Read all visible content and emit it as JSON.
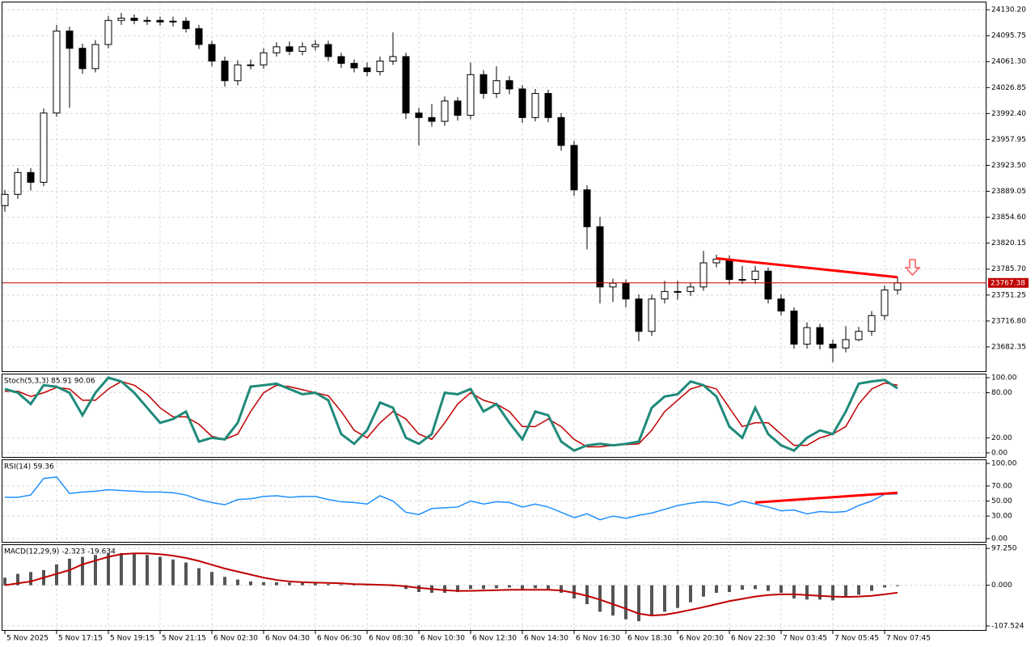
{
  "chart_data": [
    {
      "type": "candlestick",
      "categories": [
        "5 Nov 2025",
        null,
        null,
        null,
        "5 Nov 17:15",
        null,
        null,
        null,
        "5 Nov 19:15",
        null,
        null,
        null,
        "5 Nov 21:15",
        null,
        null,
        null,
        "6 Nov 02:30",
        null,
        null,
        null,
        "6 Nov 04:30",
        null,
        null,
        null,
        "6 Nov 06:30",
        null,
        null,
        null,
        "6 Nov 08:30",
        null,
        null,
        null,
        "6 Nov 10:30",
        null,
        null,
        null,
        "6 Nov 12:30",
        null,
        null,
        null,
        "6 Nov 14:30",
        null,
        null,
        null,
        "6 Nov 16:30",
        null,
        null,
        null,
        "6 Nov 18:30",
        null,
        null,
        null,
        "6 Nov 20:30",
        null,
        null,
        null,
        "6 Nov 22:30",
        null,
        null,
        null,
        "7 Nov 03:45",
        null,
        null,
        null,
        "7 Nov 05:45",
        null,
        null,
        null,
        "7 Nov 07:45",
        null
      ],
      "open": [
        23870,
        23885,
        23914,
        23901,
        23993,
        24102,
        24079,
        24052,
        24084,
        24116,
        24119,
        24116,
        24116,
        24114,
        24115,
        24105,
        24084,
        24062,
        24036,
        24057,
        24057,
        24073,
        24081,
        24075,
        24081,
        24084,
        24068,
        24059,
        24053,
        24048,
        24062,
        24068,
        23993,
        23987,
        23982,
        24009,
        23990,
        24044,
        24019,
        24036,
        24025,
        23987,
        24019,
        23987,
        23950,
        23891,
        23842,
        23762,
        23767,
        23746,
        23703,
        23746,
        23756,
        23756,
        23762,
        23794,
        23799,
        23772,
        23772,
        23783,
        23746,
        23730,
        23686,
        23708,
        23686,
        23681,
        23692,
        23703,
        23724,
        23758
      ],
      "high": [
        23891,
        23920,
        23920,
        23999,
        24110,
        24108,
        24085,
        24090,
        24122,
        24126,
        24124,
        24121,
        24121,
        24121,
        24120,
        24110,
        24089,
        24068,
        24063,
        24064,
        24079,
        24087,
        24088,
        24087,
        24090,
        24089,
        24073,
        24064,
        24060,
        24068,
        24100,
        24073,
        24000,
        24005,
        24015,
        24014,
        24060,
        24050,
        24055,
        24042,
        24030,
        24025,
        24024,
        23993,
        23956,
        23897,
        23855,
        23773,
        23772,
        23752,
        23752,
        23770,
        23770,
        23768,
        23810,
        23805,
        23804,
        23790,
        23790,
        23788,
        23752,
        23735,
        23715,
        23713,
        23692,
        23710,
        23709,
        23730,
        23764,
        23775
      ],
      "low": [
        23862,
        23879,
        23890,
        23896,
        23988,
        24000,
        24045,
        24047,
        24079,
        24110,
        24111,
        24110,
        24109,
        24108,
        24100,
        24078,
        24055,
        24028,
        24030,
        24051,
        24052,
        24068,
        24070,
        24070,
        24076,
        24062,
        24053,
        24047,
        24042,
        24043,
        24057,
        23985,
        23950,
        23975,
        23976,
        23983,
        23985,
        24012,
        24013,
        24018,
        23980,
        23982,
        23981,
        23943,
        23883,
        23812,
        23740,
        23742,
        23735,
        23690,
        23697,
        23740,
        23745,
        23750,
        23757,
        23788,
        23765,
        23766,
        23766,
        23740,
        23724,
        23680,
        23680,
        23679,
        23662,
        23675,
        23690,
        23697,
        23718,
        23752
      ],
      "close": [
        23885,
        23914,
        23901,
        23993,
        24102,
        24079,
        24052,
        24084,
        24116,
        24119,
        24116,
        24116,
        24114,
        24115,
        24105,
        24084,
        24062,
        24036,
        24057,
        24057,
        24073,
        24081,
        24075,
        24081,
        24084,
        24068,
        24059,
        24053,
        24048,
        24062,
        24068,
        23993,
        23987,
        23982,
        24009,
        23990,
        24044,
        24019,
        24036,
        24025,
        23987,
        24019,
        23987,
        23950,
        23891,
        23842,
        23762,
        23767,
        23746,
        23703,
        23746,
        23756,
        23756,
        23762,
        23794,
        23799,
        23772,
        23772,
        23783,
        23746,
        23730,
        23686,
        23708,
        23686,
        23681,
        23692,
        23703,
        23724,
        23758,
        23767.38
      ],
      "ylim": [
        23649,
        24141
      ],
      "yticks": [
        {
          "value": 24130.2,
          "label": "24130.20"
        },
        {
          "value": 24095.75,
          "label": "24095.75"
        },
        {
          "value": 24061.3,
          "label": "24061.30"
        },
        {
          "value": 24026.85,
          "label": "24026.85"
        },
        {
          "value": 23992.4,
          "label": "23992.40"
        },
        {
          "value": 23957.95,
          "label": "23957.95"
        },
        {
          "value": 23923.5,
          "label": "23923.50"
        },
        {
          "value": 23889.05,
          "label": "23889.05"
        },
        {
          "value": 23854.6,
          "label": "23854.60"
        },
        {
          "value": 23820.15,
          "label": "23820.15"
        },
        {
          "value": 23785.7,
          "label": "23785.70"
        },
        {
          "value": 23751.25,
          "label": "23751.25"
        },
        {
          "value": 23716.8,
          "label": "23716.80"
        },
        {
          "value": 23682.35,
          "label": "23682.35"
        }
      ],
      "current_price": {
        "value": 23767.38,
        "label": "23767.38"
      },
      "trendline": {
        "x": [
          55,
          69
        ],
        "y": [
          23800,
          23775
        ],
        "color": "#ff0000"
      },
      "grid": true
    },
    {
      "type": "line",
      "title": "Stoch(5,3,3) 85.91 90.06",
      "values": [
        85,
        80,
        65,
        90,
        88,
        80,
        50,
        80,
        100,
        95,
        80,
        60,
        40,
        45,
        55,
        15,
        20,
        18,
        40,
        88,
        90,
        92,
        85,
        78,
        80,
        70,
        25,
        12,
        30,
        67,
        60,
        20,
        12,
        25,
        80,
        78,
        85,
        55,
        65,
        40,
        18,
        55,
        50,
        15,
        3,
        10,
        12,
        10,
        12,
        15,
        60,
        75,
        78,
        95,
        90,
        75,
        35,
        20,
        60,
        25,
        10,
        3,
        20,
        30,
        25,
        55,
        92,
        95,
        97,
        85.91
      ],
      "color": "#1f8a7a",
      "signal": [
        82,
        82,
        75,
        80,
        87,
        85,
        70,
        70,
        85,
        95,
        90,
        78,
        60,
        48,
        48,
        38,
        22,
        18,
        25,
        55,
        80,
        90,
        88,
        84,
        80,
        76,
        55,
        30,
        20,
        40,
        55,
        45,
        25,
        18,
        40,
        65,
        80,
        70,
        65,
        55,
        35,
        35,
        45,
        35,
        18,
        8,
        8,
        10,
        11,
        12,
        30,
        55,
        70,
        85,
        90,
        85,
        60,
        35,
        40,
        40,
        25,
        10,
        10,
        20,
        25,
        35,
        65,
        85,
        93,
        90.06
      ],
      "signal_color": "#c00000",
      "ylim": [
        -6.5,
        105.4
      ],
      "yticks": [
        {
          "value": 100,
          "label": "100.00"
        },
        {
          "value": 80,
          "label": "80.00"
        },
        {
          "value": 20,
          "label": "20.00"
        },
        {
          "value": 0,
          "label": "0.00"
        }
      ],
      "grid": true
    },
    {
      "type": "line",
      "title": "RSI(14) 59.36",
      "values": [
        55,
        55,
        58,
        80,
        82,
        60,
        62,
        63,
        65,
        64,
        63,
        62,
        62,
        61,
        58,
        52,
        48,
        45,
        52,
        53,
        56,
        57,
        55,
        56,
        56,
        52,
        49,
        48,
        46,
        57,
        50,
        35,
        32,
        40,
        41,
        42,
        50,
        46,
        49,
        48,
        42,
        46,
        42,
        35,
        28,
        33,
        25,
        30,
        27,
        31,
        34,
        39,
        44,
        47,
        49,
        48,
        44,
        50,
        46,
        42,
        37,
        38,
        33,
        36,
        35,
        36,
        44,
        50,
        59,
        59.36
      ],
      "color": "#1e90ff",
      "ylim": [
        -5.4,
        105.4
      ],
      "yticks": [
        {
          "value": 100,
          "label": "100.00"
        },
        {
          "value": 70,
          "label": "70.00"
        },
        {
          "value": 50,
          "label": "50.00"
        },
        {
          "value": 30,
          "label": "30.00"
        },
        {
          "value": 0,
          "label": "0.00"
        }
      ],
      "trendline": {
        "x": [
          58,
          69
        ],
        "y": [
          48,
          61
        ],
        "color": "#ff0000"
      },
      "grid": true
    },
    {
      "type": "macd",
      "title": "MACD(12,29,9) -2.323 -19.634",
      "values": [
        20,
        30,
        35,
        40,
        55,
        70,
        75,
        80,
        85,
        85,
        82,
        80,
        75,
        68,
        60,
        45,
        35,
        22,
        15,
        10,
        8,
        8,
        7,
        6,
        5,
        3,
        2,
        0,
        -1,
        2,
        -3,
        -10,
        -18,
        -20,
        -20,
        -18,
        -10,
        -10,
        -8,
        -6,
        -10,
        -8,
        -10,
        -20,
        -35,
        -50,
        -70,
        -80,
        -90,
        -95,
        -80,
        -70,
        -60,
        -45,
        -30,
        -20,
        -18,
        -12,
        -10,
        -15,
        -20,
        -35,
        -38,
        -38,
        -40,
        -30,
        -25,
        -15,
        -6,
        -2.323
      ],
      "color": "#555555",
      "signal": [
        0,
        5,
        10,
        20,
        30,
        40,
        55,
        65,
        75,
        82,
        84,
        84,
        82,
        78,
        72,
        64,
        54,
        44,
        36,
        28,
        20,
        14,
        10,
        8,
        7,
        6,
        5,
        3,
        2,
        1,
        0,
        -3,
        -7,
        -10,
        -13,
        -15,
        -15,
        -14,
        -13,
        -12,
        -12,
        -12,
        -12,
        -14,
        -20,
        -28,
        -38,
        -50,
        -62,
        -75,
        -80,
        -78,
        -72,
        -65,
        -58,
        -50,
        -42,
        -36,
        -30,
        -26,
        -24,
        -24,
        -26,
        -28,
        -30,
        -31,
        -30,
        -28,
        -24,
        -19.634
      ],
      "signal_color": "#c00000",
      "ylim": [
        -120.4,
        108.1
      ],
      "yticks": [
        {
          "value": 97.25,
          "label": "97.250"
        },
        {
          "value": 0,
          "label": "0.000"
        },
        {
          "value": -107.524,
          "label": "-107.524"
        }
      ],
      "grid": true
    }
  ]
}
